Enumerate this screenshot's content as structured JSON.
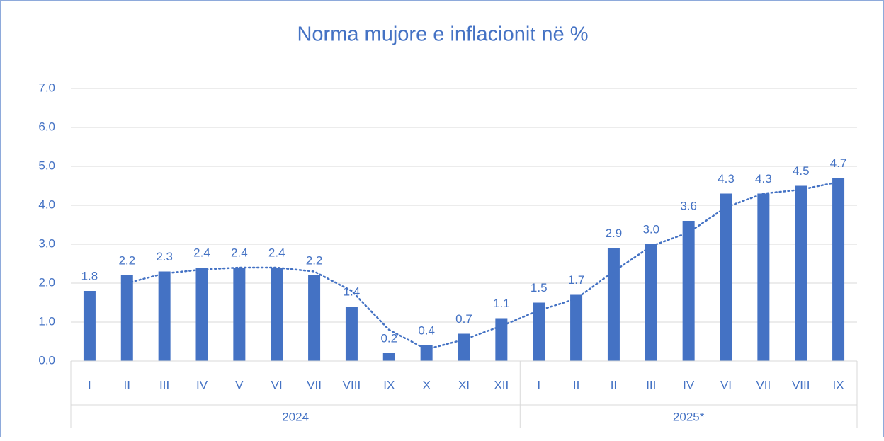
{
  "chart_data": {
    "type": "bar",
    "title": "Norma mujore  e inflacionit në %",
    "categories": [
      "I",
      "II",
      "III",
      "IV",
      "V",
      "VI",
      "VII",
      "VIII",
      "IX",
      "X",
      "XI",
      "XII",
      "I",
      "II",
      "II",
      "III",
      "IV",
      "VI",
      "VII",
      "VIII",
      "IX"
    ],
    "groups": [
      {
        "label": "2024",
        "size": 12
      },
      {
        "label": "2025*",
        "size": 9
      }
    ],
    "values": [
      1.8,
      2.2,
      2.3,
      2.4,
      2.4,
      2.4,
      2.2,
      1.4,
      0.2,
      0.4,
      0.7,
      1.1,
      1.5,
      1.7,
      2.9,
      3.0,
      3.6,
      4.3,
      4.3,
      4.5,
      4.7
    ],
    "value_labels": [
      "1.8",
      "2.2",
      "2.3",
      "2.4",
      "2.4",
      "2.4",
      "2.2",
      "1.4",
      "0.2",
      "0.4",
      "0.7",
      "1.1",
      "1.5",
      "1.7",
      "2.9",
      "3.0",
      "3.6",
      "4.3",
      "4.3",
      "4.5",
      "4.7"
    ],
    "color": "#4472c4",
    "trendline": {
      "type": "moving_average",
      "period": 2
    },
    "ylim": [
      0,
      7
    ],
    "yticks": [
      {
        "value": 0,
        "label": "0.0"
      },
      {
        "value": 1,
        "label": "1.0"
      },
      {
        "value": 2,
        "label": "2.0"
      },
      {
        "value": 3,
        "label": "3.0"
      },
      {
        "value": 4,
        "label": "4.0"
      },
      {
        "value": 5,
        "label": "5.0"
      },
      {
        "value": 6,
        "label": "6.0"
      },
      {
        "value": 7,
        "label": "7.0"
      }
    ],
    "grid": true
  }
}
